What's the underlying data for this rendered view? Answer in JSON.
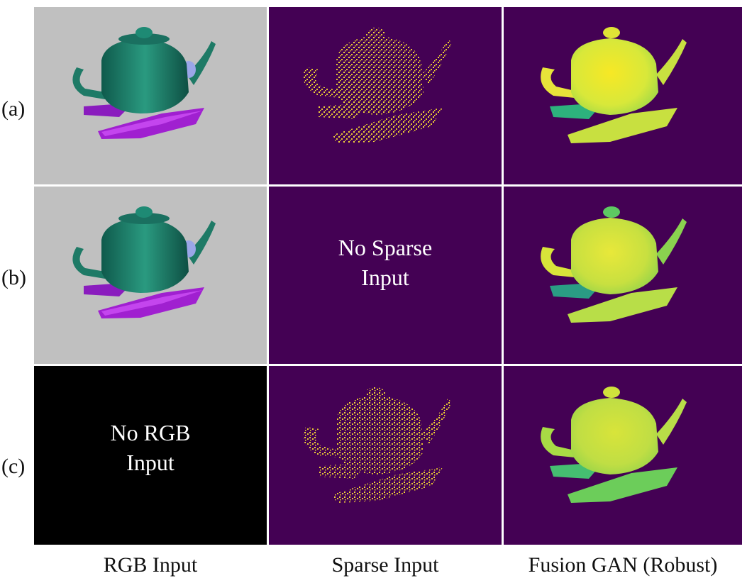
{
  "rows": [
    {
      "label": "(a)"
    },
    {
      "label": "(b)"
    },
    {
      "label": "(c)"
    }
  ],
  "columns": [
    {
      "label": "RGB Input"
    },
    {
      "label": "Sparse Input"
    },
    {
      "label": "Fusion GAN (Robust)"
    }
  ],
  "overlays": {
    "no_sparse": [
      "No Sparse",
      "Input"
    ],
    "no_rgb": [
      "No RGB",
      "Input"
    ]
  },
  "colors": {
    "rgb_background": "#c0c0c0",
    "depth_background": "#440154",
    "teapot": "#1e8a74",
    "crystals": "#a020d0",
    "sparse_points": "#f2d23a",
    "fusion_fill": "#d8e83a"
  }
}
